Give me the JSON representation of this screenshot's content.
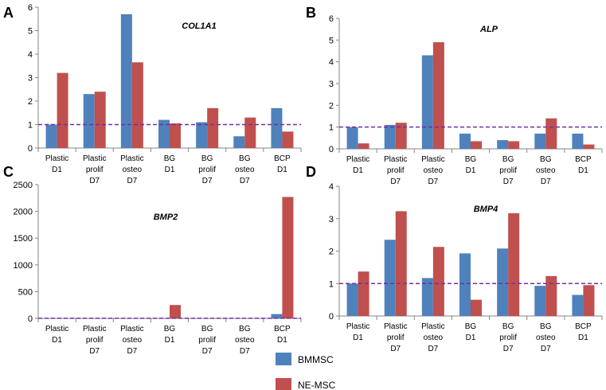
{
  "colors": {
    "BMMSC": "#4F81BD",
    "NE-MSC": "#C0504D",
    "reference_line": "#7030A0"
  },
  "legend": [
    {
      "name": "BMMSC",
      "color": "#4F81BD"
    },
    {
      "name": "NE-MSC",
      "color": "#C0504D"
    }
  ],
  "chart_data": [
    {
      "panel": "A",
      "type": "bar",
      "title": "COL1A1",
      "categories": [
        [
          "Plastic",
          "D1"
        ],
        [
          "Plastic",
          "prolif",
          "D7"
        ],
        [
          "Plastic",
          "osteo",
          "D7"
        ],
        [
          "BG",
          "D1"
        ],
        [
          "BG",
          "prolif",
          "D7"
        ],
        [
          "BG",
          "osteo",
          "D7"
        ],
        [
          "BCP",
          "D1"
        ]
      ],
      "series": [
        {
          "name": "BMMSC",
          "values": [
            1.0,
            2.3,
            5.7,
            1.2,
            1.1,
            0.5,
            1.7
          ]
        },
        {
          "name": "NE-MSC",
          "values": [
            3.2,
            2.4,
            3.65,
            1.05,
            1.7,
            1.3,
            0.7
          ]
        }
      ],
      "ylim": [
        0,
        6
      ],
      "yticks": [
        0,
        1,
        2,
        3,
        4,
        5,
        6
      ],
      "reference_line": 1
    },
    {
      "panel": "B",
      "type": "bar",
      "title": "ALP",
      "categories": [
        [
          "Plastic",
          "D1"
        ],
        [
          "Plastic",
          "prolif",
          "D7"
        ],
        [
          "Plastic",
          "osteo",
          "D7"
        ],
        [
          "BG",
          "D1"
        ],
        [
          "BG",
          "prolif",
          "D7"
        ],
        [
          "BG",
          "osteo",
          "D7"
        ],
        [
          "BCP",
          "D1"
        ]
      ],
      "series": [
        {
          "name": "BMMSC",
          "values": [
            1.0,
            1.1,
            4.3,
            0.7,
            0.4,
            0.7,
            0.7
          ]
        },
        {
          "name": "NE-MSC",
          "values": [
            0.25,
            1.2,
            4.9,
            0.35,
            0.35,
            1.4,
            0.2
          ]
        }
      ],
      "ylim": [
        0,
        6
      ],
      "yticks": [
        0,
        1,
        2,
        3,
        4,
        5,
        6
      ],
      "reference_line": 1
    },
    {
      "panel": "C",
      "type": "bar",
      "title": "BMP2",
      "categories": [
        [
          "Plastic",
          "D1"
        ],
        [
          "Plastic",
          "prolif",
          "D7"
        ],
        [
          "Plastic",
          "osteo",
          "D7"
        ],
        [
          "BG",
          "D1"
        ],
        [
          "BG",
          "prolif",
          "D7"
        ],
        [
          "BG",
          "osteo",
          "D7"
        ],
        [
          "BCP",
          "D1"
        ]
      ],
      "series": [
        {
          "name": "BMMSC",
          "values": [
            1,
            1,
            1,
            1,
            1,
            1,
            80
          ]
        },
        {
          "name": "NE-MSC",
          "values": [
            1,
            1,
            1,
            250,
            1,
            1,
            2270
          ]
        }
      ],
      "ylim": [
        0,
        2500
      ],
      "yticks": [
        0,
        500,
        1000,
        1500,
        2000,
        2500
      ],
      "reference_line": 1
    },
    {
      "panel": "D",
      "type": "bar",
      "title": "BMP4",
      "categories": [
        [
          "Plastic",
          "D1"
        ],
        [
          "Plastic",
          "prolif",
          "D7"
        ],
        [
          "Plastic",
          "osteo",
          "D7"
        ],
        [
          "BG",
          "D1"
        ],
        [
          "BG",
          "prolif",
          "D7"
        ],
        [
          "BG",
          "osteo",
          "D7"
        ],
        [
          "BCP",
          "D1"
        ]
      ],
      "series": [
        {
          "name": "BMMSC",
          "values": [
            1.0,
            2.35,
            1.17,
            1.93,
            2.08,
            0.93,
            0.65
          ]
        },
        {
          "name": "NE-MSC",
          "values": [
            1.37,
            3.23,
            2.13,
            0.5,
            3.17,
            1.23,
            0.95
          ]
        }
      ],
      "ylim": [
        0,
        4
      ],
      "yticks": [
        0,
        1,
        2,
        3,
        4
      ],
      "reference_line": 1
    }
  ]
}
